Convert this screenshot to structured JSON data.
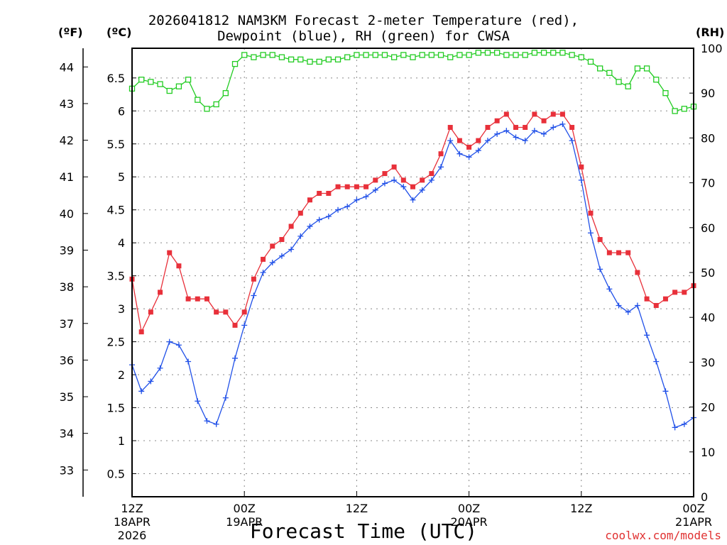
{
  "chart_data": {
    "type": "line",
    "title_line1": "2026041812 NAM3KM Forecast 2-meter Temperature (red),",
    "title_line2": "Dewpoint (blue), RH (green) for CWSA",
    "units": {
      "fahrenheit": "(ºF)",
      "celsius": "(ºC)",
      "rh": "(RH)"
    },
    "xlabel": "Forecast Time (UTC)",
    "credit": "coolwx.com/models",
    "x_range_hours": [
      0,
      60
    ],
    "x_ticks": [
      {
        "hour": 0,
        "lines": [
          "12Z",
          "18APR",
          "2026"
        ]
      },
      {
        "hour": 12,
        "lines": [
          "00Z",
          "19APR"
        ]
      },
      {
        "hour": 24,
        "lines": [
          "12Z"
        ]
      },
      {
        "hour": 36,
        "lines": [
          "00Z",
          "20APR"
        ]
      },
      {
        "hour": 48,
        "lines": [
          "12Z"
        ]
      },
      {
        "hour": 60,
        "lines": [
          "00Z",
          "21APR"
        ]
      }
    ],
    "y_celsius": {
      "range": [
        0.15,
        6.95
      ],
      "ticks": [
        "0.5",
        "1",
        "1.5",
        "2",
        "2.5",
        "3",
        "3.5",
        "4",
        "4.5",
        "5",
        "5.5",
        "6",
        "6.5"
      ]
    },
    "y_fahrenheit": {
      "ticks": [
        "33",
        "34",
        "35",
        "36",
        "37",
        "38",
        "39",
        "40",
        "41",
        "42",
        "43",
        "44"
      ]
    },
    "y_rh": {
      "range": [
        0,
        100
      ],
      "ticks": [
        "0",
        "10",
        "20",
        "30",
        "40",
        "50",
        "60",
        "70",
        "80",
        "90",
        "100"
      ]
    },
    "hours": [
      0,
      1,
      2,
      3,
      4,
      5,
      6,
      7,
      8,
      9,
      10,
      11,
      12,
      13,
      14,
      15,
      16,
      17,
      18,
      19,
      20,
      21,
      22,
      23,
      24,
      25,
      26,
      27,
      28,
      29,
      30,
      31,
      32,
      33,
      34,
      35,
      36,
      37,
      38,
      39,
      40,
      41,
      42,
      43,
      44,
      45,
      46,
      47,
      48,
      49,
      50,
      51,
      52,
      53,
      54,
      55,
      56,
      57,
      58,
      59,
      60
    ],
    "series": [
      {
        "name": "Temperature",
        "color": "#e8303a",
        "marker": "filled-square",
        "values": [
          3.45,
          2.65,
          2.95,
          3.25,
          3.85,
          3.65,
          3.15,
          3.15,
          3.15,
          2.95,
          2.95,
          2.75,
          2.95,
          3.45,
          3.75,
          3.95,
          4.05,
          4.25,
          4.45,
          4.65,
          4.75,
          4.75,
          4.85,
          4.85,
          4.85,
          4.85,
          4.95,
          5.05,
          5.15,
          4.95,
          4.85,
          4.95,
          5.05,
          5.35,
          5.75,
          5.55,
          5.45,
          5.55,
          5.75,
          5.85,
          5.95,
          5.75,
          5.75,
          5.95,
          5.85,
          5.95,
          5.95,
          5.75,
          5.15,
          4.45,
          4.05,
          3.85,
          3.85,
          3.85,
          3.55,
          3.15,
          3.05,
          3.15,
          3.25,
          3.25,
          3.35
        ]
      },
      {
        "name": "Dewpoint",
        "color": "#2050e8",
        "marker": "plus",
        "values": [
          2.15,
          1.75,
          1.9,
          2.1,
          2.5,
          2.45,
          2.2,
          1.6,
          1.3,
          1.25,
          1.65,
          2.25,
          2.75,
          3.2,
          3.55,
          3.7,
          3.8,
          3.9,
          4.1,
          4.25,
          4.35,
          4.4,
          4.5,
          4.55,
          4.65,
          4.7,
          4.8,
          4.9,
          4.95,
          4.85,
          4.65,
          4.8,
          4.95,
          5.15,
          5.55,
          5.35,
          5.3,
          5.4,
          5.55,
          5.65,
          5.7,
          5.6,
          5.55,
          5.7,
          5.65,
          5.75,
          5.8,
          5.55,
          4.95,
          4.15,
          3.6,
          3.3,
          3.05,
          2.95,
          3.05,
          2.6,
          2.2,
          1.75,
          1.2,
          1.25,
          1.35
        ]
      },
      {
        "name": "RH",
        "color": "#22cc22",
        "marker": "open-square",
        "values": [
          91,
          93,
          92.5,
          92,
          90.5,
          91.5,
          93,
          88.5,
          86.5,
          87.5,
          90,
          96.5,
          98.5,
          98,
          98.5,
          98.5,
          98,
          97.5,
          97.5,
          97,
          97,
          97.5,
          97.5,
          98,
          98.5,
          98.5,
          98.5,
          98.5,
          98,
          98.5,
          98,
          98.5,
          98.5,
          98.5,
          98,
          98.5,
          98.5,
          99,
          99,
          99,
          98.5,
          98.5,
          98.5,
          99,
          99,
          99,
          99,
          98.5,
          98,
          97,
          95.5,
          94.5,
          92.5,
          91.5,
          95.5,
          95.5,
          93,
          90,
          86,
          86.5,
          87
        ]
      }
    ]
  }
}
